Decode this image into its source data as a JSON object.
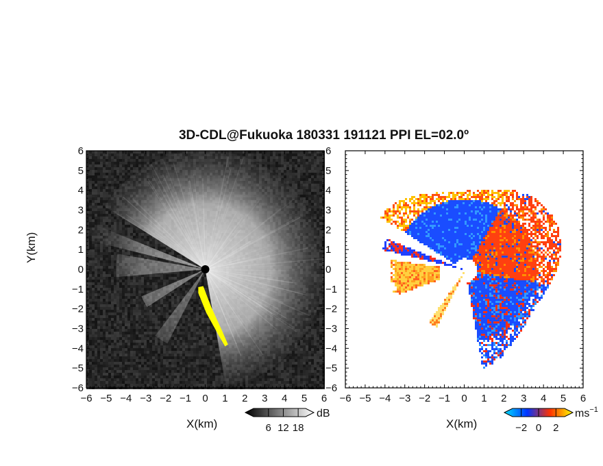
{
  "chart_data": [
    {
      "type": "heatmap",
      "panel": "reflectivity",
      "title": "3D-CDL@Fukuoka 180331 191121 PPI EL=02.0º",
      "xlabel": "X(km)",
      "ylabel": "Y(km)",
      "xlim": [
        -6,
        6
      ],
      "ylim": [
        -6,
        6
      ],
      "xticks": [
        "−6",
        "−5",
        "−4",
        "−3",
        "−2",
        "−1",
        "0",
        "1",
        "2",
        "3",
        "4",
        "5",
        "6"
      ],
      "yticks": [
        "−6",
        "−5",
        "−4",
        "−3",
        "−2",
        "−1",
        "0",
        "1",
        "2",
        "3",
        "4",
        "5",
        "6"
      ],
      "colorbar": {
        "unit": "dB",
        "ticks": [
          "6",
          "12",
          "18"
        ],
        "tick_values": [
          6,
          12,
          18
        ],
        "range": [
          0,
          21
        ],
        "colors": [
          "#000000",
          "#ffffff"
        ]
      },
      "highlight_color": "#ffff00",
      "background_color": "#0b0b0b"
    },
    {
      "type": "heatmap",
      "panel": "doppler_velocity",
      "xlabel": "X(km)",
      "xlim": [
        -6,
        6
      ],
      "ylim": [
        -6,
        6
      ],
      "xticks": [
        "−6",
        "−5",
        "−4",
        "−3",
        "−2",
        "−1",
        "0",
        "1",
        "2",
        "3",
        "4",
        "5",
        "6"
      ],
      "yticks": [
        "−6",
        "−5",
        "−4",
        "−3",
        "−2",
        "−1",
        "0",
        "1",
        "2",
        "3",
        "4",
        "5",
        "6"
      ],
      "colorbar": {
        "unit": "ms",
        "unit_exponent": "−1",
        "ticks": [
          "−2",
          "0",
          "2"
        ],
        "tick_values": [
          -2,
          0,
          2
        ],
        "range": [
          -3,
          3
        ],
        "colors": [
          "#00e0ff",
          "#0033ff",
          "#ff3300",
          "#ffff00"
        ]
      },
      "background_color": "#ffffff"
    }
  ]
}
